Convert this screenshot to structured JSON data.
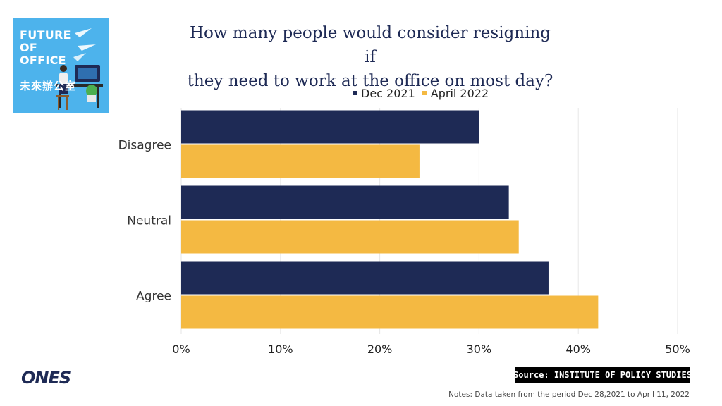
{
  "logo": {
    "line1": "FUTURE",
    "line2": "OF",
    "line3": "OFFICE",
    "cjk": "未來辦公室"
  },
  "chart_data": {
    "type": "bar",
    "orientation": "horizontal",
    "title": "How many people would consider resigning if they need to work at the office on most day?",
    "title_lines": [
      "How many people would consider resigning if",
      "they need to work at the office on most day?"
    ],
    "categories": [
      "Disagree",
      "Neutral",
      "Agree"
    ],
    "series": [
      {
        "name": "Dec 2021",
        "color": "#1e2a55",
        "values": [
          30,
          33,
          37
        ]
      },
      {
        "name": "April 2022",
        "color": "#f4b942",
        "values": [
          24,
          34,
          42
        ]
      }
    ],
    "xlim": [
      0,
      50
    ],
    "xticks": [
      0,
      10,
      20,
      30,
      40,
      50
    ],
    "xtick_labels": [
      "0%",
      "10%",
      "20%",
      "30%",
      "40%",
      "50%"
    ],
    "grid": true,
    "legend_position": "top"
  },
  "brand": "ONES",
  "source": "Source: INSTITUTE OF POLICY STUDIES",
  "note": "Notes: Data taken from the period Dec 28,2021 to April 11, 2022"
}
